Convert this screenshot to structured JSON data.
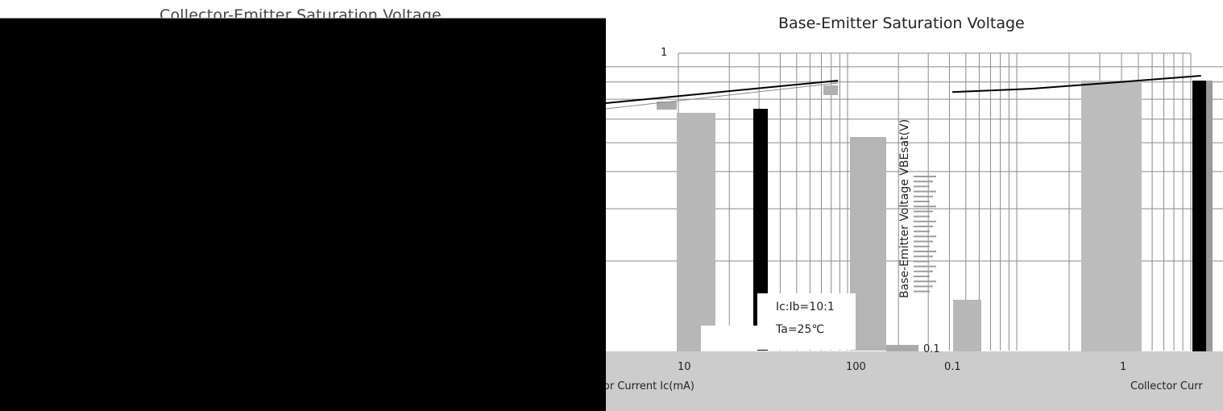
{
  "chart_data": [
    {
      "type": "line",
      "title": "Collector-Emitter Saturation Voltage",
      "obscured": true,
      "xlabel": "Collector Current  Ic(mA)",
      "ticks_x": [
        "10",
        "100"
      ],
      "annotations": [
        "Ic:Ib=10:1",
        "Ta=25℃"
      ]
    },
    {
      "type": "line",
      "title": "Base-Emitter Saturation Voltage",
      "ylabel": "Base-Emitter Voltage   VBEsat(V)",
      "xlabel": "Collector Curr",
      "ticks_y": [
        "1",
        "0.1"
      ],
      "ticks_x": [
        "0.1",
        "1"
      ],
      "x_scale": "log",
      "y_scale": "log",
      "series": [
        {
          "x": [
            0.1,
            0.3,
            1,
            3
          ],
          "y": [
            0.74,
            0.76,
            0.8,
            0.84
          ]
        }
      ]
    }
  ],
  "colors": {
    "grid": "#8a8a8a",
    "curve": "#000000",
    "band": "#cccccc",
    "mask": "#000000"
  }
}
